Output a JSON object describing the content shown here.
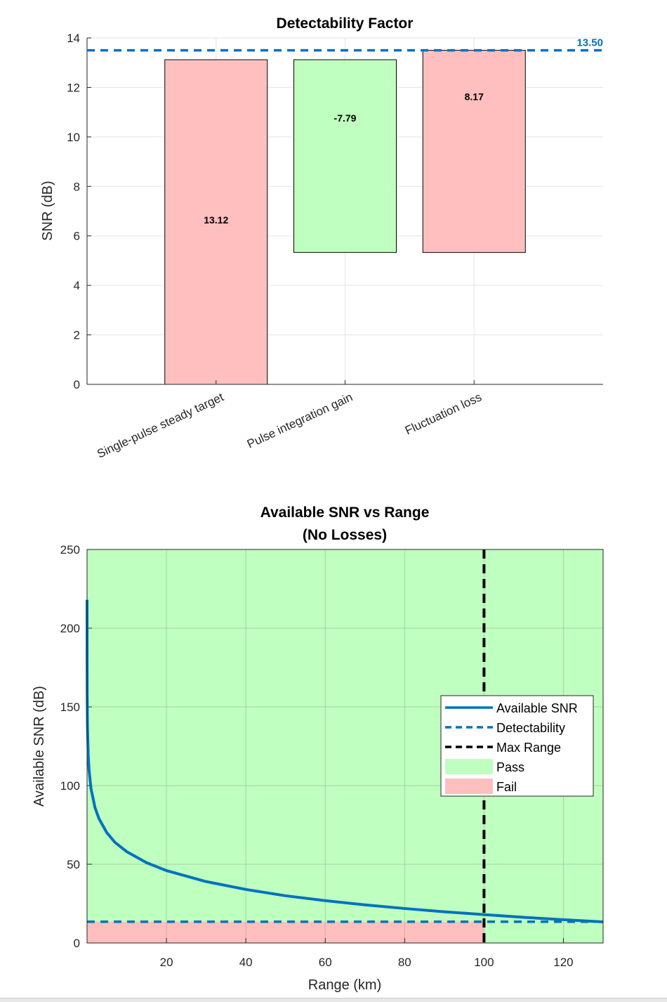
{
  "chart_data": [
    {
      "type": "bar",
      "title": "Detectability Factor",
      "xlabel": "",
      "ylabel": "SNR (dB)",
      "ylim": [
        0,
        14
      ],
      "yticks": [
        0,
        2,
        4,
        6,
        8,
        10,
        12,
        14
      ],
      "xlim": [
        0,
        4
      ],
      "grid": true,
      "categories": [
        "Single-pulse steady target",
        "Pulse integration gain",
        "Fluctuation loss"
      ],
      "bars": [
        {
          "start": 0,
          "end": 13.12,
          "label": "13.12",
          "color": "#ffbfbf"
        },
        {
          "start": 13.12,
          "end": 5.33,
          "label": "-7.79",
          "color": "#bfffbf"
        },
        {
          "start": 5.33,
          "end": 13.5,
          "label": "8.17",
          "color": "#ffbfbf"
        }
      ],
      "reference_line": {
        "value": 13.5,
        "label": "13.50",
        "color": "#0072bd",
        "style": "dashed"
      }
    },
    {
      "type": "line",
      "title": [
        "Available SNR vs Range",
        "(No Losses)"
      ],
      "xlabel": "Range (km)",
      "ylabel": "Available SNR (dB)",
      "xlim": [
        0,
        130
      ],
      "ylim": [
        0,
        250
      ],
      "xticks": [
        20,
        40,
        60,
        80,
        100,
        120
      ],
      "yticks": [
        0,
        50,
        100,
        150,
        200,
        250
      ],
      "grid": true,
      "legend_position": "right",
      "series": [
        {
          "name": "Available SNR",
          "color": "#0072bd",
          "style": "solid",
          "x": [
            0.001,
            0.003,
            0.01,
            0.03,
            0.1,
            0.3,
            0.5,
            1,
            2,
            3,
            5,
            7,
            10,
            15,
            20,
            30,
            40,
            50,
            60,
            70,
            80,
            90,
            100,
            110,
            120,
            130
          ],
          "y": [
            218,
            199,
            178,
            159,
            138,
            119,
            110,
            98,
            86,
            79,
            70,
            64,
            58,
            51,
            46,
            39,
            34,
            30,
            26.9,
            24.2,
            21.9,
            19.8,
            18,
            16.3,
            14.8,
            13.4
          ]
        },
        {
          "name": "Detectability",
          "color": "#0072bd",
          "style": "dashed",
          "value": 13.5
        },
        {
          "name": "Max Range",
          "color": "#000000",
          "style": "dashed",
          "value": 100
        }
      ],
      "regions": [
        {
          "name": "Pass",
          "color": "#bfffbf"
        },
        {
          "name": "Fail",
          "color": "#ffbfbf",
          "x": [
            0,
            100
          ],
          "y": [
            0,
            13.5
          ]
        }
      ]
    }
  ]
}
